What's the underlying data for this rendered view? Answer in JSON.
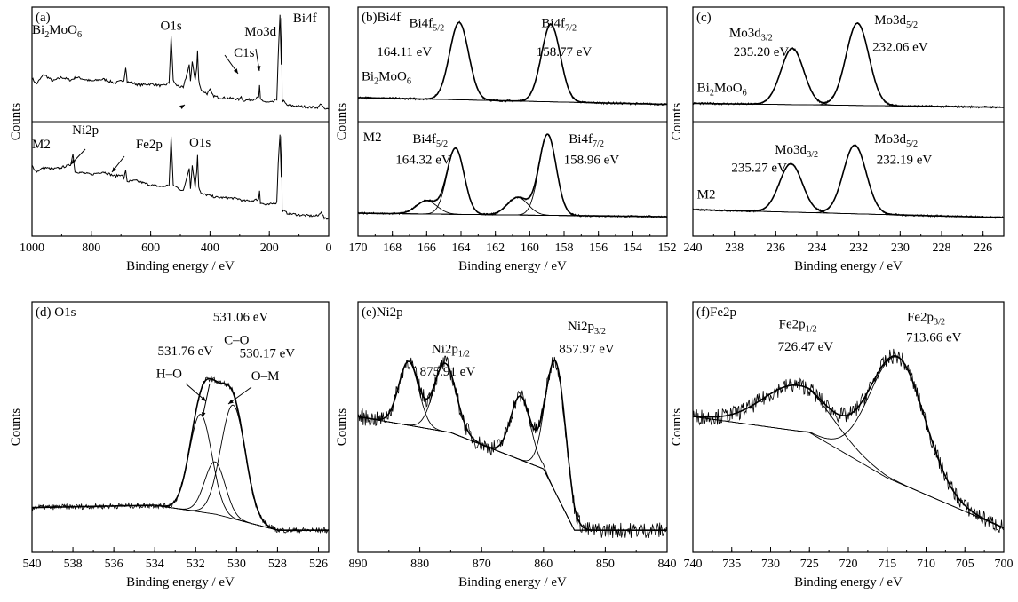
{
  "chart_data": [
    {
      "panel": "a",
      "type": "line",
      "panel_label": "(a)",
      "xlabel": "Binding energy / eV",
      "ylabel": "Counts",
      "xlim": [
        1000,
        0
      ],
      "xticks": [
        1000,
        800,
        600,
        400,
        200,
        0
      ],
      "split": true,
      "series": [
        {
          "name": "Bi2MoO6",
          "sub": "top",
          "x": [
            1000,
            985,
            960,
            930,
            900,
            870,
            850,
            800,
            760,
            720,
            690,
            684,
            679,
            660,
            640,
            600,
            560,
            538,
            531,
            524,
            515,
            490,
            470,
            466,
            460,
            450,
            445,
            442,
            438,
            430,
            410,
            400,
            390,
            370,
            320,
            300,
            295,
            290,
            260,
            236,
            233,
            230,
            210,
            190,
            175,
            170,
            164,
            160,
            158,
            157,
            140,
            100,
            60,
            35,
            25,
            15,
            0
          ],
          "y": [
            0.32,
            0.26,
            0.36,
            0.29,
            0.33,
            0.3,
            0.33,
            0.29,
            0.31,
            0.27,
            0.3,
            0.44,
            0.28,
            0.27,
            0.25,
            0.26,
            0.24,
            0.27,
            0.76,
            0.3,
            0.25,
            0.22,
            0.46,
            0.28,
            0.5,
            0.3,
            0.42,
            0.6,
            0.3,
            0.2,
            0.16,
            0.2,
            0.14,
            0.12,
            0.11,
            0.1,
            0.14,
            0.09,
            0.1,
            0.12,
            0.24,
            0.1,
            0.07,
            0.07,
            0.1,
            0.55,
            0.97,
            0.45,
            0.95,
            0.1,
            0.04,
            0.03,
            0.02,
            0.02,
            0.06,
            0.0,
            0.0
          ]
        },
        {
          "name": "M2",
          "sub": "bottom",
          "x": [
            1000,
            985,
            960,
            930,
            900,
            880,
            870,
            862,
            855,
            850,
            800,
            760,
            720,
            700,
            690,
            684,
            679,
            650,
            600,
            560,
            538,
            531,
            524,
            515,
            490,
            470,
            466,
            460,
            450,
            445,
            442,
            438,
            430,
            400,
            380,
            320,
            300,
            290,
            260,
            236,
            233,
            230,
            210,
            175,
            170,
            164,
            160,
            158,
            157,
            140,
            100,
            60,
            35,
            25,
            15,
            0
          ],
          "y": [
            0.62,
            0.55,
            0.6,
            0.58,
            0.6,
            0.62,
            0.63,
            0.75,
            0.55,
            0.55,
            0.52,
            0.55,
            0.5,
            0.52,
            0.48,
            0.56,
            0.44,
            0.45,
            0.4,
            0.38,
            0.4,
            0.95,
            0.4,
            0.38,
            0.33,
            0.6,
            0.36,
            0.62,
            0.38,
            0.55,
            0.75,
            0.38,
            0.3,
            0.28,
            0.26,
            0.25,
            0.24,
            0.22,
            0.22,
            0.24,
            0.34,
            0.2,
            0.17,
            0.2,
            0.65,
            0.98,
            0.5,
            0.96,
            0.12,
            0.08,
            0.06,
            0.05,
            0.05,
            0.1,
            0.02,
            0.02
          ]
        }
      ],
      "annotations": [
        {
          "text": "Bi",
          "sub_text": "2",
          "text2": "MoO",
          "sub_text2": "6",
          "x": 1000,
          "y": 0.78,
          "sub": "top",
          "align": "left"
        },
        {
          "text": "O1s",
          "x": 531,
          "y": 0.82,
          "sub": "top"
        },
        {
          "text": "Mo3d",
          "x": 230,
          "y": 0.76,
          "sub": "top"
        },
        {
          "text": "C1s",
          "x": 285,
          "y": 0.54,
          "sub": "top"
        },
        {
          "text": "Bi4f",
          "x": 120,
          "y": 0.9,
          "sub": "top",
          "align": "left"
        },
        {
          "text": "M2",
          "x": 1000,
          "y": 0.82,
          "sub": "bottom",
          "align": "left"
        },
        {
          "text": "Ni2p",
          "x": 820,
          "y": 0.98,
          "sub": "bottom"
        },
        {
          "text": "Fe2p",
          "x": 650,
          "y": 0.82,
          "sub": "bottom",
          "align": "left"
        },
        {
          "text": "O1s",
          "x": 470,
          "y": 0.84,
          "sub": "bottom",
          "align": "left"
        }
      ]
    },
    {
      "panel": "b",
      "type": "line",
      "panel_label": "(b)Bi4f",
      "xlabel": "Binding energy / eV",
      "ylabel": "Counts",
      "xlim": [
        170,
        152
      ],
      "xticks": [
        170,
        168,
        166,
        164,
        162,
        160,
        158,
        156,
        154,
        152
      ],
      "split": true,
      "series": [
        {
          "name": "Bi2MoO6",
          "sub": "top",
          "kind": "fit",
          "background": [
            [
              170,
              0.12
            ],
            [
              152,
              0.05
            ]
          ],
          "peaks": [
            {
              "center": 164.11,
              "height": 0.8,
              "width": 0.55
            },
            {
              "center": 158.77,
              "height": 0.8,
              "width": 0.55
            }
          ]
        },
        {
          "name": "M2",
          "sub": "bottom",
          "kind": "fit",
          "background": [
            [
              170,
              0.08
            ],
            [
              152,
              0.04
            ]
          ],
          "peaks": [
            {
              "center": 164.32,
              "height": 0.75,
              "width": 0.5
            },
            {
              "center": 158.96,
              "height": 0.92,
              "width": 0.5
            },
            {
              "center": 166.0,
              "height": 0.15,
              "width": 0.6
            },
            {
              "center": 160.7,
              "height": 0.2,
              "width": 0.6
            }
          ]
        }
      ],
      "annotations": [
        {
          "text": "Bi4f",
          "sub_text": "5/2",
          "x": 166.0,
          "y": 0.85,
          "sub": "top"
        },
        {
          "text": "164.11 eV",
          "x": 167.3,
          "y": 0.55,
          "sub": "top"
        },
        {
          "text": "Bi",
          "sub_text": "2",
          "text2": "MoO",
          "sub_text2": "6",
          "x": 169.8,
          "y": 0.3,
          "sub": "top",
          "align": "left"
        },
        {
          "text": "Bi4f",
          "sub_text": "7/2",
          "x": 158.3,
          "y": 0.85,
          "sub": "top"
        },
        {
          "text": "158.77 eV",
          "x": 158.0,
          "y": 0.55,
          "sub": "top"
        },
        {
          "text": "M2",
          "x": 169.7,
          "y": 0.9,
          "sub": "bottom",
          "align": "left"
        },
        {
          "text": "Bi4f",
          "sub_text": "5/2",
          "x": 165.8,
          "y": 0.88,
          "sub": "bottom"
        },
        {
          "text": "164.32 eV",
          "x": 166.2,
          "y": 0.64,
          "sub": "bottom"
        },
        {
          "text": "Bi4f",
          "sub_text": "7/2",
          "x": 156.7,
          "y": 0.88,
          "sub": "bottom"
        },
        {
          "text": "158.96 eV",
          "x": 156.4,
          "y": 0.64,
          "sub": "bottom"
        }
      ]
    },
    {
      "panel": "c",
      "type": "line",
      "panel_label": "(c)",
      "xlabel": "Binding energy / eV",
      "ylabel": "Counts",
      "xlim": [
        240,
        225
      ],
      "xticks": [
        240,
        238,
        236,
        234,
        232,
        230,
        228,
        226
      ],
      "split": true,
      "series": [
        {
          "name": "Bi2MoO6",
          "sub": "top",
          "kind": "fit",
          "background": [
            [
              240,
              0.06
            ],
            [
              225,
              0.02
            ]
          ],
          "peaks": [
            {
              "center": 235.2,
              "height": 0.58,
              "width": 0.55
            },
            {
              "center": 232.06,
              "height": 0.85,
              "width": 0.55
            }
          ]
        },
        {
          "name": "M2",
          "sub": "bottom",
          "kind": "fit",
          "background": [
            [
              240,
              0.12
            ],
            [
              225,
              0.03
            ]
          ],
          "peaks": [
            {
              "center": 235.27,
              "height": 0.55,
              "width": 0.55
            },
            {
              "center": 232.19,
              "height": 0.78,
              "width": 0.55
            }
          ]
        }
      ],
      "annotations": [
        {
          "text": "Mo3d",
          "sub_text": "3/2",
          "x": 237.2,
          "y": 0.75,
          "sub": "top"
        },
        {
          "text": "235.20 eV",
          "x": 236.7,
          "y": 0.55,
          "sub": "top"
        },
        {
          "text": "Bi",
          "sub_text": "2",
          "text2": "MoO",
          "sub_text2": "6",
          "x": 239.8,
          "y": 0.18,
          "sub": "top",
          "align": "left"
        },
        {
          "text": "Mo3d",
          "sub_text": "5/2",
          "x": 230.2,
          "y": 0.88,
          "sub": "top"
        },
        {
          "text": "232.06 eV",
          "x": 230.0,
          "y": 0.6,
          "sub": "top"
        },
        {
          "text": "Mo3d",
          "sub_text": "3/2",
          "x": 235.0,
          "y": 0.76,
          "sub": "bottom"
        },
        {
          "text": "235.27 eV",
          "x": 236.8,
          "y": 0.55,
          "sub": "bottom"
        },
        {
          "text": "M2",
          "x": 239.8,
          "y": 0.25,
          "sub": "bottom",
          "align": "left"
        },
        {
          "text": "Mo3d",
          "sub_text": "5/2",
          "x": 230.2,
          "y": 0.88,
          "sub": "bottom"
        },
        {
          "text": "232.19 eV",
          "x": 229.8,
          "y": 0.64,
          "sub": "bottom"
        }
      ]
    },
    {
      "panel": "d",
      "type": "line",
      "panel_label": "(d)  O1s",
      "xlabel": "Binding energy / eV",
      "ylabel": "Counts",
      "xlim": [
        540,
        525.5
      ],
      "xticks": [
        540,
        538,
        536,
        534,
        532,
        530,
        528,
        526
      ],
      "split": false,
      "series": [
        {
          "name": "O1s",
          "kind": "fit",
          "background": [
            [
              540,
              0.15
            ],
            [
              534,
              0.16
            ],
            [
              531,
              0.12
            ],
            [
              528,
              0.05
            ],
            [
              525.5,
              0.05
            ]
          ],
          "peaks": [
            {
              "center": 531.76,
              "height": 0.43,
              "width": 0.55
            },
            {
              "center": 531.06,
              "height": 0.23,
              "width": 0.5
            },
            {
              "center": 530.17,
              "height": 0.5,
              "width": 0.6
            }
          ]
        }
      ],
      "annotations": [
        {
          "text": "531.06 eV",
          "x": 529.8,
          "y": 0.97,
          "sub": "main"
        },
        {
          "text": "C–O",
          "x": 530.0,
          "y": 0.87,
          "sub": "main"
        },
        {
          "text": "531.76 eV",
          "x": 532.5,
          "y": 0.82,
          "sub": "main"
        },
        {
          "text": "H–O",
          "x": 533.3,
          "y": 0.72,
          "sub": "main"
        },
        {
          "text": "530.17 eV",
          "x": 528.5,
          "y": 0.81,
          "sub": "main"
        },
        {
          "text": "O–M",
          "x": 528.6,
          "y": 0.71,
          "sub": "main"
        }
      ]
    },
    {
      "panel": "e",
      "type": "line",
      "panel_label": "(e)Ni2p",
      "xlabel": "Binding energy / eV",
      "ylabel": "Counts",
      "xlim": [
        890,
        840
      ],
      "xticks": [
        890,
        880,
        870,
        860,
        850,
        840
      ],
      "split": false,
      "series": [
        {
          "name": "Ni2p",
          "kind": "fit",
          "background": [
            [
              890,
              0.55
            ],
            [
              875,
              0.48
            ],
            [
              860,
              0.32
            ],
            [
              855,
              0.05
            ],
            [
              840,
              0.05
            ]
          ],
          "peaks": [
            {
              "center": 875.91,
              "height": 0.3,
              "width": 1.8
            },
            {
              "center": 881.8,
              "height": 0.28,
              "width": 1.6
            },
            {
              "center": 857.97,
              "height": 0.58,
              "width": 1.6
            },
            {
              "center": 863.7,
              "height": 0.28,
              "width": 1.6
            }
          ]
        }
      ],
      "annotations": [
        {
          "text": "Ni2p",
          "sub_text": "1/2",
          "x": 875.0,
          "y": 0.83,
          "sub": "main"
        },
        {
          "text": "875.91 eV",
          "x": 875.5,
          "y": 0.73,
          "sub": "main"
        },
        {
          "text": "Ni2p",
          "sub_text": "3/2",
          "x": 853.0,
          "y": 0.93,
          "sub": "main"
        },
        {
          "text": "857.97 eV",
          "x": 853.0,
          "y": 0.83,
          "sub": "main"
        }
      ]
    },
    {
      "panel": "f",
      "type": "line",
      "panel_label": "(f)Fe2p",
      "xlabel": "Binding energy / eV",
      "ylabel": "Counts",
      "xlim": [
        740,
        700
      ],
      "xticks": [
        740,
        735,
        730,
        725,
        720,
        715,
        710,
        705,
        700
      ],
      "split": false,
      "series": [
        {
          "name": "Fe2p",
          "kind": "fit",
          "background": [
            [
              740,
              0.55
            ],
            [
              725,
              0.48
            ],
            [
              715,
              0.28
            ],
            [
              700,
              0.06
            ]
          ],
          "peaks": [
            {
              "center": 726.47,
              "height": 0.2,
              "width": 4.5
            },
            {
              "center": 713.66,
              "height": 0.55,
              "width": 3.5
            }
          ]
        }
      ],
      "annotations": [
        {
          "text": "Fe2p",
          "sub_text": "1/2",
          "x": 726.5,
          "y": 0.94,
          "sub": "main"
        },
        {
          "text": "726.47 eV",
          "x": 725.5,
          "y": 0.84,
          "sub": "main"
        },
        {
          "text": "Fe2p",
          "sub_text": "3/2",
          "x": 710.0,
          "y": 0.97,
          "sub": "main"
        },
        {
          "text": "713.66 eV",
          "x": 709.0,
          "y": 0.88,
          "sub": "main"
        }
      ]
    }
  ]
}
